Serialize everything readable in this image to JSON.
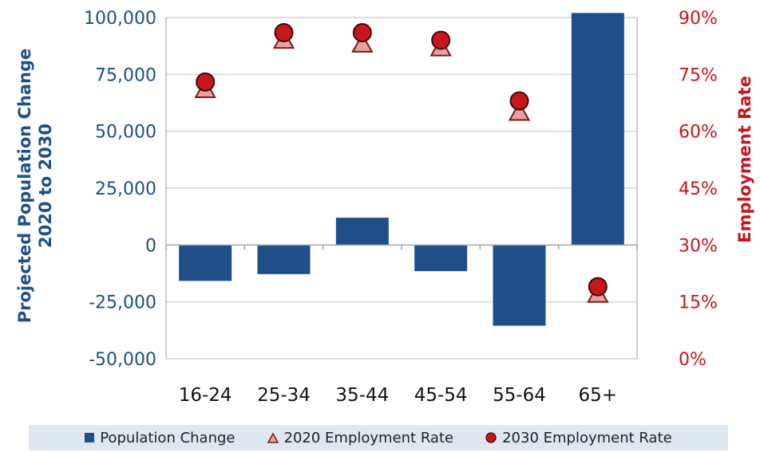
{
  "chart_data": {
    "type": "bar",
    "categories": [
      "16-24",
      "25-34",
      "35-44",
      "45-54",
      "55-64",
      "65+"
    ],
    "series": [
      {
        "name": "Population Change",
        "kind": "bar",
        "axis": "left",
        "color": "#1f4e89",
        "values": [
          -15800,
          -12800,
          12000,
          -11500,
          -35500,
          102000
        ]
      },
      {
        "name": "2020 Employment Rate",
        "kind": "triangle",
        "axis": "right",
        "color": "#e8a0a0",
        "values": [
          71,
          84,
          83,
          82,
          65,
          17
        ]
      },
      {
        "name": "2030 Employment Rate",
        "kind": "circle",
        "axis": "right",
        "color": "#c8161d",
        "values": [
          73,
          86,
          86,
          84,
          68,
          19
        ]
      }
    ],
    "y_left": {
      "label_line1": "Projected Population Change",
      "label_line2": "2020 to 2030",
      "range": [
        -50000,
        100000
      ],
      "ticks": [
        "-50,000",
        "-25,000",
        "0",
        "25,000",
        "50,000",
        "75,000",
        "100,000"
      ],
      "color": "#1f4e89"
    },
    "y_right": {
      "label": "Employment Rate",
      "range": [
        0,
        90
      ],
      "ticks": [
        "0%",
        "15%",
        "30%",
        "45%",
        "60%",
        "75%",
        "90%"
      ],
      "color": "#c8161d"
    },
    "grid": true,
    "legend_position": "bottom"
  }
}
